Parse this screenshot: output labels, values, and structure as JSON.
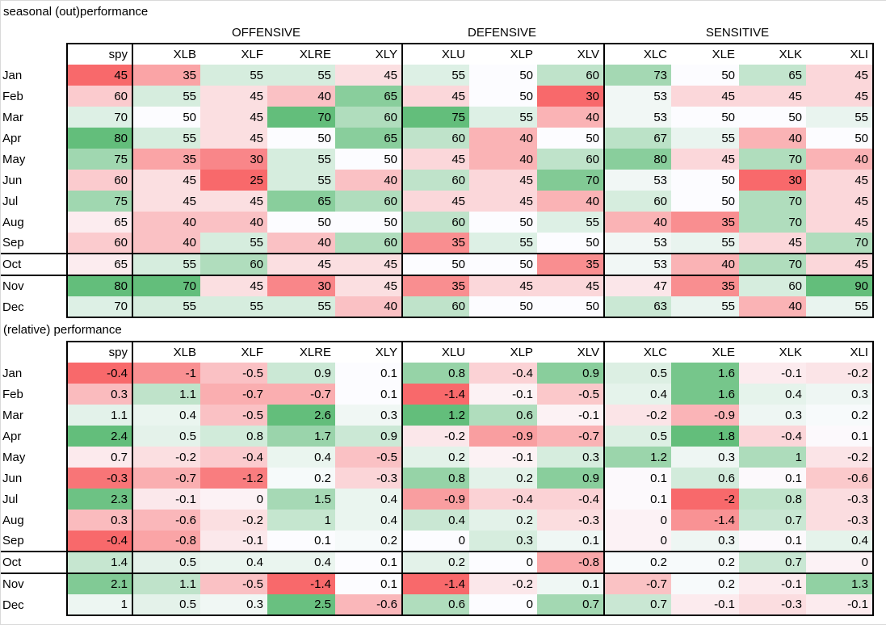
{
  "colors": {
    "scale_min_red": "#F8696B",
    "scale_mid_white": "#FCFCFF",
    "scale_max_green": "#63BE7B",
    "table_border": "#000000",
    "sheet_gridline": "#D9D9D9"
  },
  "chart_data": [
    {
      "type": "heatmap",
      "title": "seasonal (out)performance",
      "show_group_labels": true,
      "columns": [
        "spy",
        "XLB",
        "XLF",
        "XLRE",
        "XLY",
        "XLU",
        "XLP",
        "XLV",
        "XLC",
        "XLE",
        "XLK",
        "XLI"
      ],
      "column_groups": [
        {
          "label": "",
          "columns": [
            "spy"
          ]
        },
        {
          "label": "OFFENSIVE",
          "columns": [
            "XLB",
            "XLF",
            "XLRE",
            "XLY"
          ]
        },
        {
          "label": "DEFENSIVE",
          "columns": [
            "XLU",
            "XLP",
            "XLV"
          ]
        },
        {
          "label": "SENSITIVE",
          "columns": [
            "XLC",
            "XLE",
            "XLK",
            "XLI"
          ]
        }
      ],
      "rows": [
        "Jan",
        "Feb",
        "Mar",
        "Apr",
        "May",
        "Jun",
        "Jul",
        "Aug",
        "Sep",
        "Oct",
        "Nov",
        "Dec"
      ],
      "row_boxes": [
        "Oct"
      ],
      "values": [
        [
          45,
          35,
          55,
          55,
          45,
          55,
          50,
          60,
          73,
          50,
          65,
          45
        ],
        [
          60,
          55,
          45,
          40,
          65,
          45,
          50,
          30,
          53,
          45,
          45,
          45
        ],
        [
          70,
          50,
          45,
          70,
          60,
          75,
          55,
          40,
          53,
          50,
          50,
          55
        ],
        [
          80,
          55,
          45,
          50,
          65,
          60,
          40,
          50,
          67,
          55,
          40,
          50
        ],
        [
          75,
          35,
          30,
          55,
          50,
          45,
          40,
          60,
          80,
          45,
          70,
          40
        ],
        [
          60,
          45,
          25,
          55,
          40,
          60,
          45,
          70,
          53,
          50,
          30,
          45
        ],
        [
          75,
          45,
          45,
          65,
          60,
          45,
          45,
          40,
          60,
          50,
          70,
          45
        ],
        [
          65,
          40,
          40,
          50,
          50,
          60,
          50,
          55,
          40,
          35,
          70,
          45
        ],
        [
          60,
          40,
          55,
          40,
          60,
          35,
          55,
          50,
          53,
          55,
          45,
          70
        ],
        [
          65,
          55,
          60,
          45,
          45,
          50,
          50,
          35,
          53,
          40,
          70,
          45
        ],
        [
          80,
          70,
          45,
          30,
          45,
          35,
          45,
          45,
          47,
          35,
          60,
          90
        ],
        [
          70,
          55,
          55,
          55,
          40,
          60,
          50,
          50,
          63,
          55,
          40,
          55
        ]
      ],
      "color_scale": {
        "min": "#F8696B",
        "mid": "#FCFCFF",
        "max": "#63BE7B",
        "midpoint": "median",
        "scope": "per_column_group"
      }
    },
    {
      "type": "heatmap",
      "title": "(relative) performance",
      "show_group_labels": false,
      "columns": [
        "spy",
        "XLB",
        "XLF",
        "XLRE",
        "XLY",
        "XLU",
        "XLP",
        "XLV",
        "XLC",
        "XLE",
        "XLK",
        "XLI"
      ],
      "column_groups": [
        {
          "label": "",
          "columns": [
            "spy"
          ]
        },
        {
          "label": "OFFENSIVE",
          "columns": [
            "XLB",
            "XLF",
            "XLRE",
            "XLY"
          ]
        },
        {
          "label": "DEFENSIVE",
          "columns": [
            "XLU",
            "XLP",
            "XLV"
          ]
        },
        {
          "label": "SENSITIVE",
          "columns": [
            "XLC",
            "XLE",
            "XLK",
            "XLI"
          ]
        }
      ],
      "rows": [
        "Jan",
        "Feb",
        "Mar",
        "Apr",
        "May",
        "Jun",
        "Jul",
        "Aug",
        "Sep",
        "Oct",
        "Nov",
        "Dec"
      ],
      "row_boxes": [
        "Oct"
      ],
      "values": [
        [
          -0.4,
          -1,
          -0.5,
          0.9,
          0.1,
          0.8,
          -0.4,
          0.9,
          0.5,
          1.6,
          -0.1,
          -0.2
        ],
        [
          0.3,
          1.1,
          -0.7,
          -0.7,
          0.1,
          -1.4,
          -0.1,
          -0.5,
          0.4,
          1.6,
          0.4,
          0.3
        ],
        [
          1.1,
          0.4,
          -0.5,
          2.6,
          0.3,
          1.2,
          0.6,
          -0.1,
          -0.2,
          -0.9,
          0.3,
          0.2
        ],
        [
          2.4,
          0.5,
          0.8,
          1.7,
          0.9,
          -0.2,
          -0.9,
          -0.7,
          0.5,
          1.8,
          -0.4,
          0.1
        ],
        [
          0.7,
          -0.2,
          -0.4,
          0.4,
          -0.5,
          0.2,
          -0.1,
          0.3,
          1.2,
          0.3,
          1,
          -0.2
        ],
        [
          -0.3,
          -0.7,
          -1.2,
          0.2,
          -0.3,
          0.8,
          0.2,
          0.9,
          0.1,
          0.6,
          0.1,
          -0.6
        ],
        [
          2.3,
          -0.1,
          0,
          1.5,
          0.4,
          -0.9,
          -0.4,
          -0.4,
          0.1,
          -2,
          0.8,
          -0.3
        ],
        [
          0.3,
          -0.6,
          -0.2,
          1,
          0.4,
          0.4,
          0.2,
          -0.3,
          0,
          -1.4,
          0.7,
          -0.3
        ],
        [
          -0.4,
          -0.8,
          -0.1,
          0.1,
          0.2,
          0,
          0.3,
          0.1,
          0,
          0.3,
          0.1,
          0.4
        ],
        [
          1.4,
          0.5,
          0.4,
          0.4,
          0.1,
          0.2,
          0,
          -0.8,
          0.2,
          0.2,
          0.7,
          0
        ],
        [
          2.1,
          1.1,
          -0.5,
          -1.4,
          0.1,
          -1.4,
          -0.2,
          0.1,
          -0.7,
          0.2,
          -0.1,
          1.3
        ],
        [
          1,
          0.5,
          0.3,
          2.5,
          -0.6,
          0.6,
          0,
          0.7,
          0.7,
          -0.1,
          -0.3,
          -0.1
        ]
      ],
      "color_scale": {
        "min": "#F8696B",
        "mid": "#FCFCFF",
        "max": "#63BE7B",
        "midpoint": "median",
        "scope": "per_column_group"
      }
    }
  ]
}
